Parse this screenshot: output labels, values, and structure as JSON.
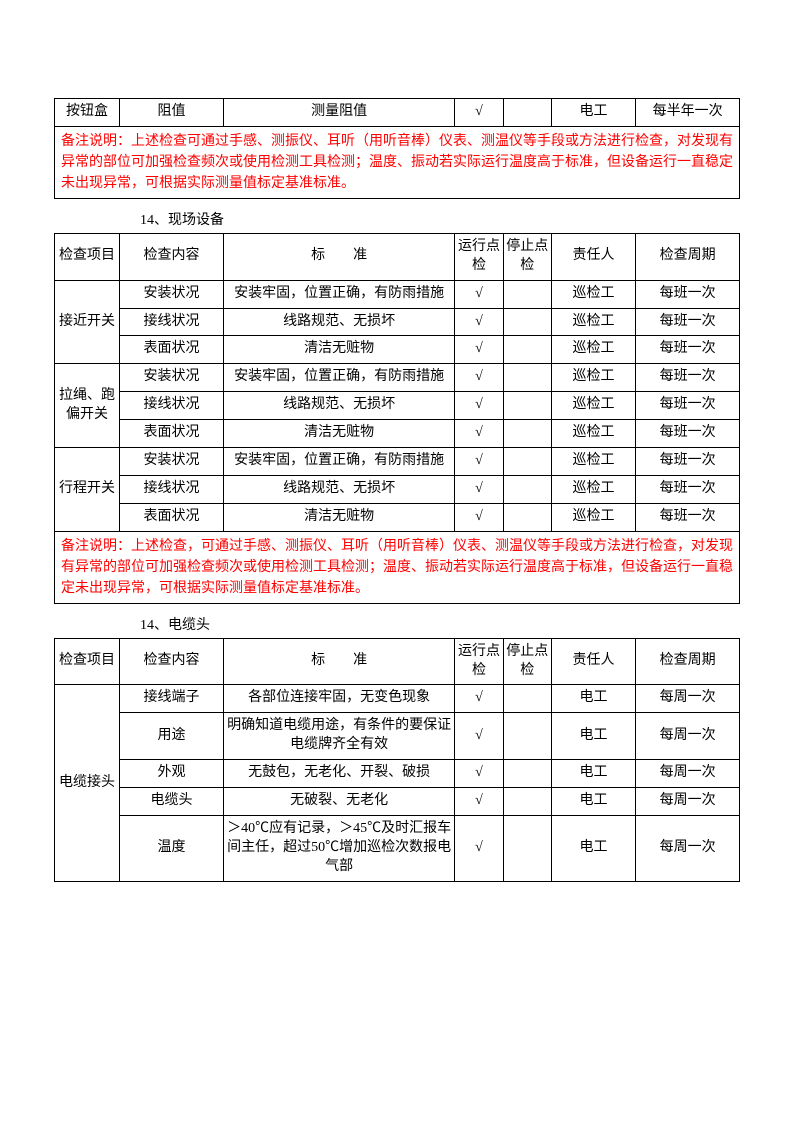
{
  "colors": {
    "text": "#000000",
    "border": "#000000",
    "note": "#ff0000",
    "bg": "#ffffff"
  },
  "columns": {
    "item": "检查项目",
    "content": "检查内容",
    "standard": "标　　准",
    "run": "运行点检",
    "stop": "停止点检",
    "owner": "责任人",
    "cycle": "检查周期"
  },
  "check_mark": "√",
  "table1": {
    "row": {
      "item": "按钮盒",
      "content": "阻值",
      "standard": "测量阻值",
      "run": "√",
      "stop": "",
      "owner": "电工",
      "cycle": "每半年一次"
    },
    "note": "备注说明：上述检查可通过手感、测振仪、耳听（用听音棒）仪表、测温仪等手段或方法进行检查，对发现有异常的部位可加强检查频次或使用检测工具检测；温度、振动若实际运行温度高于标准，但设备运行一直稳定未出现异常，可根据实际测量值标定基准标准。"
  },
  "section2_title": "14、现场设备",
  "table2": {
    "groups": [
      {
        "item": "接近开关",
        "rows": [
          {
            "content": "安装状况",
            "standard": "安装牢固，位置正确，有防雨措施",
            "run": "√",
            "stop": "",
            "owner": "巡检工",
            "cycle": "每班一次"
          },
          {
            "content": "接线状况",
            "standard": "线路规范、无损坏",
            "run": "√",
            "stop": "",
            "owner": "巡检工",
            "cycle": "每班一次"
          },
          {
            "content": "表面状况",
            "standard": "清洁无赃物",
            "run": "√",
            "stop": "",
            "owner": "巡检工",
            "cycle": "每班一次"
          }
        ]
      },
      {
        "item": "拉绳、跑偏开关",
        "rows": [
          {
            "content": "安装状况",
            "standard": "安装牢固，位置正确，有防雨措施",
            "run": "√",
            "stop": "",
            "owner": "巡检工",
            "cycle": "每班一次"
          },
          {
            "content": "接线状况",
            "standard": "线路规范、无损坏",
            "run": "√",
            "stop": "",
            "owner": "巡检工",
            "cycle": "每班一次"
          },
          {
            "content": "表面状况",
            "standard": "清洁无赃物",
            "run": "√",
            "stop": "",
            "owner": "巡检工",
            "cycle": "每班一次"
          }
        ]
      },
      {
        "item": "行程开关",
        "rows": [
          {
            "content": "安装状况",
            "standard": "安装牢固，位置正确，有防雨措施",
            "run": "√",
            "stop": "",
            "owner": "巡检工",
            "cycle": "每班一次"
          },
          {
            "content": "接线状况",
            "standard": "线路规范、无损坏",
            "run": "√",
            "stop": "",
            "owner": "巡检工",
            "cycle": "每班一次"
          },
          {
            "content": "表面状况",
            "standard": "清洁无赃物",
            "run": "√",
            "stop": "",
            "owner": "巡检工",
            "cycle": "每班一次"
          }
        ]
      }
    ],
    "note": "备注说明：上述检查，可通过手感、测振仪、耳听（用听音棒）仪表、测温仪等手段或方法进行检查，对发现有异常的部位可加强检查频次或使用检测工具检测；温度、振动若实际运行温度高于标准，但设备运行一直稳定未出现异常，可根据实际测量值标定基准标准。"
  },
  "section3_title": "14、电缆头",
  "table3": {
    "item": "电缆接头",
    "rows": [
      {
        "content": "接线端子",
        "standard": "各部位连接牢固，无变色现象",
        "run": "√",
        "stop": "",
        "owner": "电工",
        "cycle": "每周一次"
      },
      {
        "content": "用途",
        "standard": "明确知道电缆用途，有条件的要保证电缆牌齐全有效",
        "run": "√",
        "stop": "",
        "owner": "电工",
        "cycle": "每周一次"
      },
      {
        "content": "外观",
        "standard": "无鼓包，无老化、开裂、破损",
        "run": "√",
        "stop": "",
        "owner": "电工",
        "cycle": "每周一次"
      },
      {
        "content": "电缆头",
        "standard": "无破裂、无老化",
        "run": "√",
        "stop": "",
        "owner": "电工",
        "cycle": "每周一次"
      },
      {
        "content": "温度",
        "standard": "＞40℃应有记录，＞45℃及时汇报车间主任，超过50℃增加巡检次数报电气部",
        "run": "√",
        "stop": "",
        "owner": "电工",
        "cycle": "每周一次"
      }
    ]
  }
}
